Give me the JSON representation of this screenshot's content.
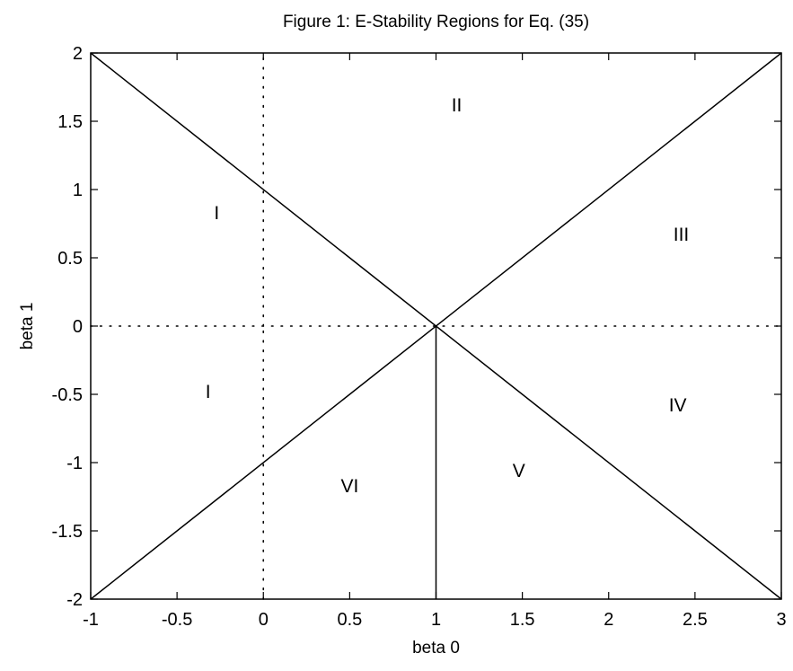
{
  "chart_data": {
    "type": "line",
    "title": "Figure 1: E-Stability Regions for Eq. (35)",
    "xlabel": "beta 0",
    "ylabel": "beta 1",
    "xlim": [
      -1,
      3
    ],
    "ylim": [
      -2,
      2
    ],
    "xticks": [
      -1,
      -0.5,
      0,
      0.5,
      1,
      1.5,
      2,
      2.5,
      3
    ],
    "xtick_labels": [
      "-1",
      "-0.5",
      "0",
      "0.5",
      "1",
      "1.5",
      "2",
      "2.5",
      "3"
    ],
    "yticks": [
      -2,
      -1.5,
      -1,
      -0.5,
      0,
      0.5,
      1,
      1.5,
      2
    ],
    "ytick_labels": [
      "-2",
      "-1.5",
      "-1",
      "-0.5",
      "0",
      "0.5",
      "1",
      "1.5",
      "2"
    ],
    "grid": false,
    "series": [
      {
        "style": "solid",
        "x": [
          -1,
          3
        ],
        "y": [
          2,
          -2
        ]
      },
      {
        "style": "solid",
        "x": [
          -1,
          3
        ],
        "y": [
          -2,
          2
        ]
      },
      {
        "style": "solid",
        "x": [
          1,
          1
        ],
        "y": [
          -2,
          0
        ]
      },
      {
        "style": "dotted",
        "x": [
          0,
          0
        ],
        "y": [
          0,
          2
        ]
      },
      {
        "style": "dotted",
        "x": [
          0,
          0
        ],
        "y": [
          -2,
          0
        ]
      },
      {
        "style": "dotted",
        "x": [
          -1,
          3
        ],
        "y": [
          0,
          0
        ]
      }
    ],
    "annotations": [
      {
        "text": "II",
        "x": 1.12,
        "y": 1.62
      },
      {
        "text": "I",
        "x": -0.27,
        "y": 0.83
      },
      {
        "text": "III",
        "x": 2.42,
        "y": 0.67
      },
      {
        "text": "I",
        "x": -0.32,
        "y": -0.48
      },
      {
        "text": "IV",
        "x": 2.4,
        "y": -0.58
      },
      {
        "text": "V",
        "x": 1.48,
        "y": -1.06
      },
      {
        "text": "VI",
        "x": 0.5,
        "y": -1.17
      }
    ]
  }
}
